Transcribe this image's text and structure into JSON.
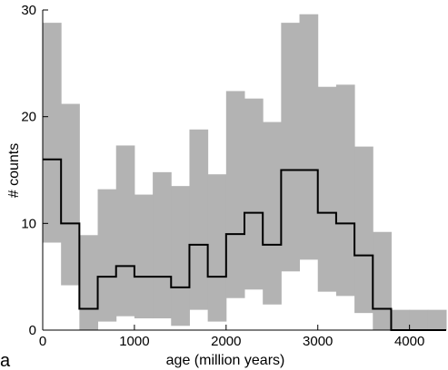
{
  "chart_data": {
    "type": "histogram",
    "xlabel": "age (million years)",
    "ylabel": "# counts",
    "panel_label": "a",
    "xlim": [
      0,
      4400
    ],
    "ylim": [
      0,
      30
    ],
    "xticks": [
      0,
      1000,
      2000,
      3000,
      4000
    ],
    "yticks": [
      0,
      10,
      20,
      30
    ],
    "bin_width": 200,
    "bins_start": [
      0,
      200,
      400,
      600,
      800,
      1000,
      1200,
      1400,
      1600,
      1800,
      2000,
      2200,
      2400,
      2600,
      2800,
      3000,
      3200,
      3400,
      3600,
      3800,
      4000,
      4200
    ],
    "counts": [
      16,
      10,
      2,
      5,
      6,
      5,
      5,
      4,
      8,
      5,
      9,
      11,
      8,
      15,
      15,
      11,
      10,
      7,
      2,
      0,
      0,
      0
    ],
    "band_upper": [
      28.8,
      21.2,
      8.9,
      13.2,
      17.3,
      12.7,
      14.8,
      13.5,
      18.8,
      14.6,
      22.4,
      21.7,
      19.5,
      28.8,
      29.6,
      22.8,
      23.0,
      17.2,
      9.2,
      1.9,
      1.9,
      1.9
    ],
    "band_lower": [
      8.2,
      4.2,
      0.0,
      0.8,
      1.3,
      1.1,
      1.1,
      0.4,
      1.9,
      0.8,
      3.0,
      3.8,
      2.4,
      5.5,
      6.6,
      3.6,
      3.2,
      1.6,
      0.0,
      0.0,
      0.0,
      0.0
    ],
    "colors": {
      "band": "#b3b3b3",
      "line": "#000000",
      "axes": "#000000"
    },
    "grid": false
  }
}
